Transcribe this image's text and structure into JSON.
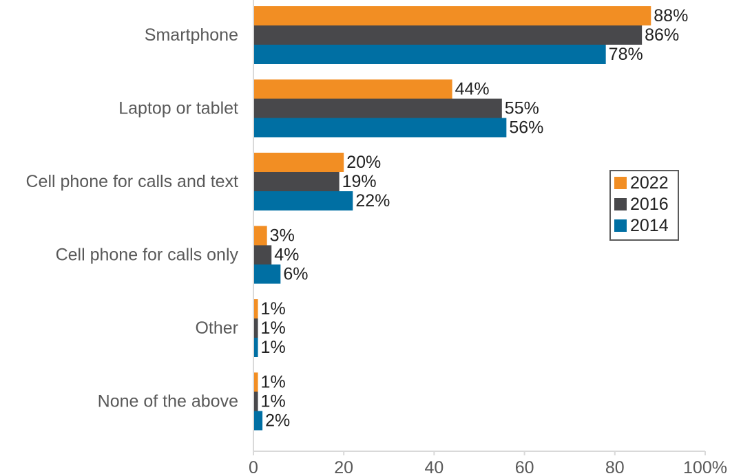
{
  "chart_data": {
    "type": "bar",
    "orientation": "horizontal",
    "title": "",
    "xlabel": "",
    "ylabel": "",
    "categories": [
      "Smartphone",
      "Laptop or tablet",
      "Cell phone for calls and text",
      "Cell phone for calls only",
      "Other",
      "None of the above"
    ],
    "series": [
      {
        "name": "2022",
        "color": "#f28e23",
        "values": [
          88,
          44,
          20,
          3,
          1,
          1
        ]
      },
      {
        "name": "2016",
        "color": "#48484b",
        "values": [
          86,
          55,
          19,
          4,
          1,
          1
        ]
      },
      {
        "name": "2014",
        "color": "#006fa3",
        "values": [
          78,
          56,
          22,
          6,
          1,
          2
        ]
      }
    ],
    "data_labels": [
      [
        "88%",
        "44%",
        "20%",
        "3%",
        "1%",
        "1%"
      ],
      [
        "86%",
        "55%",
        "19%",
        "4%",
        "1%",
        "1%"
      ],
      [
        "78%",
        "56%",
        "22%",
        "6%",
        "1%",
        "2%"
      ]
    ],
    "xlim": [
      0,
      100
    ],
    "x_ticks": [
      0,
      20,
      40,
      60,
      80,
      100
    ],
    "x_tick_labels": [
      "0",
      "20",
      "40",
      "60",
      "80",
      "100%"
    ],
    "grid": false,
    "legend": {
      "placement": "right",
      "entries": [
        "2022",
        "2016",
        "2014"
      ]
    }
  }
}
